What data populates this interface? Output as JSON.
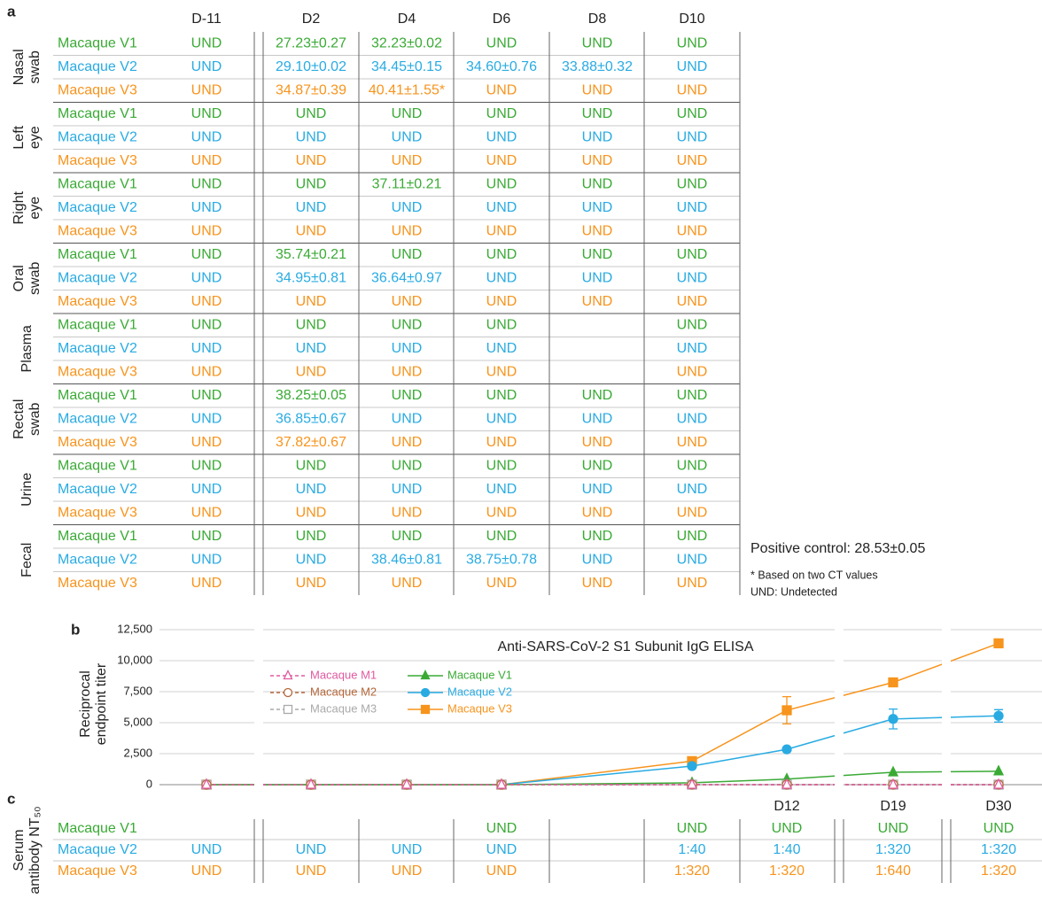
{
  "table_a": {
    "label": "a",
    "columns": [
      "D-11",
      "D2",
      "D4",
      "D6",
      "D8",
      "D10"
    ],
    "row_colors": [
      "#3aaa35",
      "#29abe2",
      "#f7941d"
    ],
    "groups": [
      {
        "name": [
          "Nasal",
          "swab"
        ],
        "rows": [
          {
            "name": "Macaque V1",
            "cells": [
              "UND",
              "27.23±0.27",
              "32.23±0.02",
              "UND",
              "UND",
              "UND"
            ]
          },
          {
            "name": "Macaque V2",
            "cells": [
              "UND",
              "29.10±0.02",
              "34.45±0.15",
              "34.60±0.76",
              "33.88±0.32",
              "UND"
            ]
          },
          {
            "name": "Macaque V3",
            "cells": [
              "UND",
              "34.87±0.39",
              "40.41±1.55*",
              "UND",
              "UND",
              "UND"
            ]
          }
        ]
      },
      {
        "name": [
          "Left",
          "eye"
        ],
        "rows": [
          {
            "name": "Macaque V1",
            "cells": [
              "UND",
              "UND",
              "UND",
              "UND",
              "UND",
              "UND"
            ]
          },
          {
            "name": "Macaque V2",
            "cells": [
              "UND",
              "UND",
              "UND",
              "UND",
              "UND",
              "UND"
            ]
          },
          {
            "name": "Macaque V3",
            "cells": [
              "UND",
              "UND",
              "UND",
              "UND",
              "UND",
              "UND"
            ]
          }
        ]
      },
      {
        "name": [
          "Right",
          "eye"
        ],
        "rows": [
          {
            "name": "Macaque V1",
            "cells": [
              "UND",
              "UND",
              "37.11±0.21",
              "UND",
              "UND",
              "UND"
            ]
          },
          {
            "name": "Macaque V2",
            "cells": [
              "UND",
              "UND",
              "UND",
              "UND",
              "UND",
              "UND"
            ]
          },
          {
            "name": "Macaque V3",
            "cells": [
              "UND",
              "UND",
              "UND",
              "UND",
              "UND",
              "UND"
            ]
          }
        ]
      },
      {
        "name": [
          "Oral",
          "swab"
        ],
        "rows": [
          {
            "name": "Macaque V1",
            "cells": [
              "UND",
              "35.74±0.21",
              "UND",
              "UND",
              "UND",
              "UND"
            ]
          },
          {
            "name": "Macaque V2",
            "cells": [
              "UND",
              "34.95±0.81",
              "36.64±0.97",
              "UND",
              "UND",
              "UND"
            ]
          },
          {
            "name": "Macaque V3",
            "cells": [
              "UND",
              "UND",
              "UND",
              "UND",
              "UND",
              "UND"
            ]
          }
        ]
      },
      {
        "name": [
          "Plasma"
        ],
        "rows": [
          {
            "name": "Macaque V1",
            "cells": [
              "UND",
              "UND",
              "UND",
              "UND",
              null,
              "UND"
            ]
          },
          {
            "name": "Macaque V2",
            "cells": [
              "UND",
              "UND",
              "UND",
              "UND",
              null,
              "UND"
            ]
          },
          {
            "name": "Macaque V3",
            "cells": [
              "UND",
              "UND",
              "UND",
              "UND",
              null,
              "UND"
            ]
          }
        ]
      },
      {
        "name": [
          "Rectal",
          "swab"
        ],
        "rows": [
          {
            "name": "Macaque V1",
            "cells": [
              "UND",
              "38.25±0.05",
              "UND",
              "UND",
              "UND",
              "UND"
            ]
          },
          {
            "name": "Macaque V2",
            "cells": [
              "UND",
              "36.85±0.67",
              "UND",
              "UND",
              "UND",
              "UND"
            ]
          },
          {
            "name": "Macaque V3",
            "cells": [
              "UND",
              "37.82±0.67",
              "UND",
              "UND",
              "UND",
              "UND"
            ]
          }
        ]
      },
      {
        "name": [
          "Urine"
        ],
        "rows": [
          {
            "name": "Macaque V1",
            "cells": [
              "UND",
              "UND",
              "UND",
              "UND",
              "UND",
              "UND"
            ]
          },
          {
            "name": "Macaque V2",
            "cells": [
              "UND",
              "UND",
              "UND",
              "UND",
              "UND",
              "UND"
            ]
          },
          {
            "name": "Macaque V3",
            "cells": [
              "UND",
              "UND",
              "UND",
              "UND",
              "UND",
              "UND"
            ]
          }
        ]
      },
      {
        "name": [
          "Fecal"
        ],
        "rows": [
          {
            "name": "Macaque V1",
            "cells": [
              "UND",
              "UND",
              "UND",
              "UND",
              "UND",
              "UND"
            ]
          },
          {
            "name": "Macaque V2",
            "cells": [
              "UND",
              "UND",
              "38.46±0.81",
              "38.75±0.78",
              "UND",
              "UND"
            ]
          },
          {
            "name": "Macaque V3",
            "cells": [
              "UND",
              "UND",
              "UND",
              "UND",
              "UND",
              "UND"
            ]
          }
        ]
      }
    ],
    "notes": [
      "Positive control: 28.53±0.05",
      "* Based on two CT values",
      "UND: Undetected"
    ]
  },
  "chart_data": {
    "type": "line",
    "label": "b",
    "title": "Anti-SARS-CoV-2 S1 Subunit IgG ELISA",
    "y_label": [
      "Reciprocal",
      "endpoint titer"
    ],
    "categories": [
      null,
      null,
      null,
      null,
      null,
      "D12",
      "D19",
      "D30"
    ],
    "ylim": [
      0,
      12500
    ],
    "yticks": [
      0,
      {
        "value": 2500,
        "label": "2,500"
      },
      {
        "value": 5000,
        "label": "5,000"
      },
      {
        "value": 7500,
        "label": "7,500"
      },
      {
        "value": 10000,
        "label": "10,000"
      },
      {
        "value": 12500,
        "label": "12,500"
      }
    ],
    "grid": true,
    "series": [
      {
        "name": "Macaque V3",
        "color": "#f7941d",
        "marker": "square",
        "dashed": false,
        "values": [
          0,
          0,
          0,
          0,
          1900,
          6000,
          8250,
          11400
        ],
        "errors": [
          null,
          null,
          null,
          null,
          null,
          1100,
          null,
          null
        ]
      },
      {
        "name": "Macaque V2",
        "color": "#29abe2",
        "marker": "circle",
        "dashed": false,
        "values": [
          0,
          0,
          0,
          0,
          1500,
          2850,
          5300,
          5550
        ],
        "errors": [
          null,
          null,
          null,
          null,
          null,
          150,
          800,
          500
        ]
      },
      {
        "name": "Macaque V1",
        "color": "#3aaa35",
        "marker": "triangle",
        "dashed": false,
        "values": [
          0,
          0,
          0,
          0,
          150,
          450,
          1000,
          1080
        ],
        "errors": [
          null,
          null,
          null,
          null,
          null,
          null,
          null,
          null
        ]
      },
      {
        "name": "Macaque M3",
        "color": "#aaaaaa",
        "marker": "square",
        "dashed": true,
        "values": [
          0,
          0,
          0,
          0,
          0,
          0,
          0,
          0
        ],
        "errors": [
          null,
          null,
          null,
          null,
          null,
          null,
          null,
          null
        ]
      },
      {
        "name": "Macaque M2",
        "color": "#b5663a",
        "marker": "circle",
        "dashed": true,
        "values": [
          0,
          0,
          0,
          0,
          0,
          0,
          0,
          0
        ],
        "errors": [
          null,
          null,
          null,
          null,
          null,
          null,
          null,
          null
        ]
      },
      {
        "name": "Macaque M1",
        "color": "#e05aa0",
        "marker": "triangle",
        "dashed": true,
        "values": [
          0,
          0,
          0,
          0,
          0,
          0,
          0,
          0
        ],
        "errors": [
          null,
          null,
          null,
          null,
          null,
          null,
          null,
          null
        ]
      }
    ]
  },
  "table_c": {
    "label": "c",
    "row_label": [
      "Serum",
      "antibody NT₅₀"
    ],
    "rows": [
      {
        "name": "Macaque V1",
        "color": "#3aaa35",
        "cells": [
          null,
          null,
          null,
          "UND",
          null,
          "UND",
          "UND",
          "UND",
          "UND"
        ]
      },
      {
        "name": "Macaque V2",
        "color": "#29abe2",
        "cells": [
          "UND",
          "UND",
          "UND",
          "UND",
          null,
          "1:40",
          "1:40",
          "1:320",
          "1:320"
        ]
      },
      {
        "name": "Macaque V3",
        "color": "#f7941d",
        "cells": [
          "UND",
          "UND",
          "UND",
          "UND",
          null,
          "1:320",
          "1:320",
          "1:640",
          "1:320"
        ]
      }
    ]
  }
}
